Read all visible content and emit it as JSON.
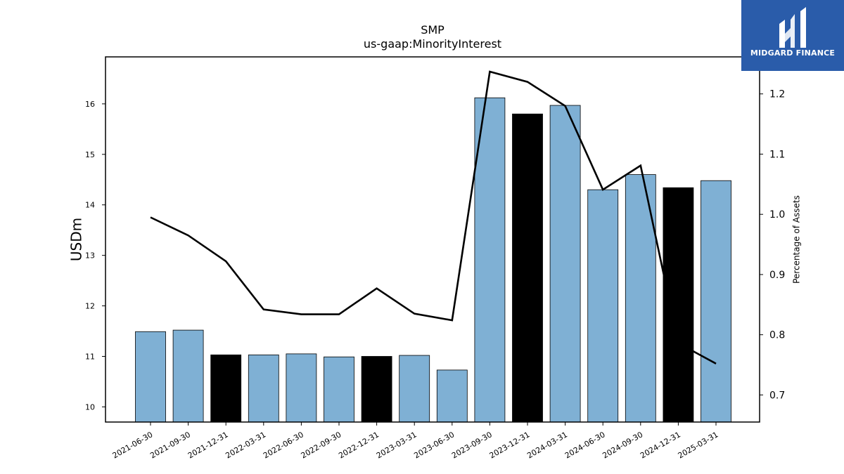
{
  "chart_data": {
    "type": "bar",
    "title": "SMP",
    "subtitle": "us-gaap:MinorityInterest",
    "ylabel": "USDm",
    "y2label": "Percentage of Assets",
    "categories": [
      "2021-06-30",
      "2021-09-30",
      "2021-12-31",
      "2022-03-31",
      "2022-06-30",
      "2022-09-30",
      "2022-12-31",
      "2023-03-31",
      "2023-06-30",
      "2023-09-30",
      "2023-12-31",
      "2024-03-31",
      "2024-06-30",
      "2024-09-30",
      "2024-12-31",
      "2025-03-31"
    ],
    "series": [
      {
        "type": "bar",
        "axis": "left",
        "values": [
          11.49,
          11.52,
          11.03,
          11.03,
          11.05,
          10.99,
          11.0,
          11.02,
          10.73,
          16.12,
          15.8,
          15.97,
          14.3,
          14.6,
          14.34,
          14.48
        ],
        "colors": [
          "#7fb0d4",
          "#7fb0d4",
          "#000000",
          "#7fb0d4",
          "#7fb0d4",
          "#7fb0d4",
          "#000000",
          "#7fb0d4",
          "#7fb0d4",
          "#7fb0d4",
          "#000000",
          "#7fb0d4",
          "#7fb0d4",
          "#7fb0d4",
          "#000000",
          "#7fb0d4"
        ]
      },
      {
        "type": "line",
        "axis": "right",
        "color": "#000000",
        "values": [
          0.995,
          0.965,
          0.922,
          0.842,
          0.834,
          0.834,
          0.877,
          0.835,
          0.824,
          1.237,
          1.22,
          1.18,
          1.041,
          1.081,
          0.786,
          0.752
        ]
      }
    ],
    "ylim": [
      9.7,
      16.93
    ],
    "y2lim": [
      0.655,
      1.2615
    ],
    "yticks": [
      "10",
      "11",
      "12",
      "13",
      "14",
      "15",
      "16"
    ],
    "y2ticks": [
      "0.7",
      "0.8",
      "0.9",
      "1.0",
      "1.1",
      "1.2"
    ],
    "grid": false,
    "legend": "none"
  },
  "logo": {
    "text": "MIDGARD FINANCE",
    "bg_color": "#2a5caa"
  }
}
